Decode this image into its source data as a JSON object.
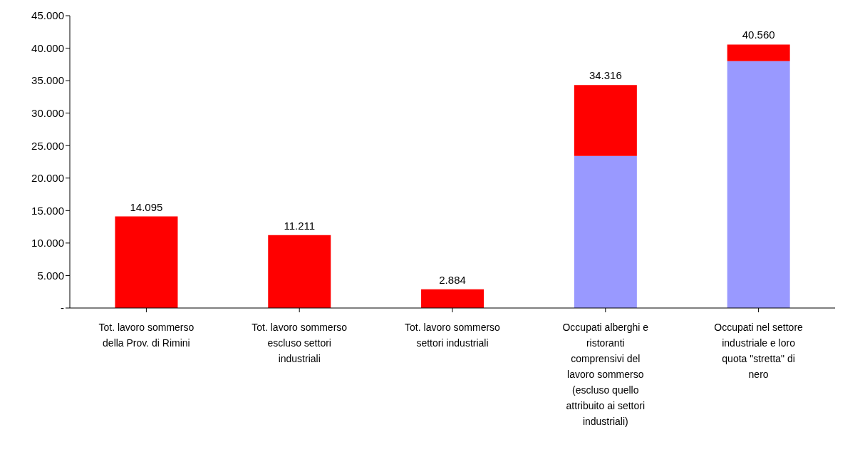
{
  "chart_data": {
    "type": "bar",
    "stacked": true,
    "categories": [
      "Tot. lavoro sommerso della Prov. di Rimini",
      "Tot. lavoro sommerso escluso settori industriali",
      "Tot. lavoro sommerso settori industriali",
      "Occupati alberghi e ristoranti comprensivi del lavoro sommerso (escluso quello attribuito ai settori industriali)",
      "Occupati nel settore industriale e loro quota \"stretta\" di nero"
    ],
    "series": [
      {
        "color": "#9999ff",
        "values": [
          null,
          null,
          null,
          23400,
          38000
        ]
      },
      {
        "color": "#ff0000",
        "values": [
          14095,
          11211,
          2884,
          10916,
          2560
        ]
      }
    ],
    "totals": [
      "14.095",
      "11.211",
      "2.884",
      "34.316",
      "40.560"
    ],
    "ylim": [
      0,
      45000
    ],
    "yticks": [
      {
        "value": 0,
        "label": "-"
      },
      {
        "value": 5000,
        "label": "5.000"
      },
      {
        "value": 10000,
        "label": "10.000"
      },
      {
        "value": 15000,
        "label": "15.000"
      },
      {
        "value": 20000,
        "label": "20.000"
      },
      {
        "value": 25000,
        "label": "25.000"
      },
      {
        "value": 30000,
        "label": "30.000"
      },
      {
        "value": 35000,
        "label": "35.000"
      },
      {
        "value": 40000,
        "label": "40.000"
      },
      {
        "value": 45000,
        "label": "45.000"
      }
    ],
    "grid": false,
    "legend": false
  }
}
